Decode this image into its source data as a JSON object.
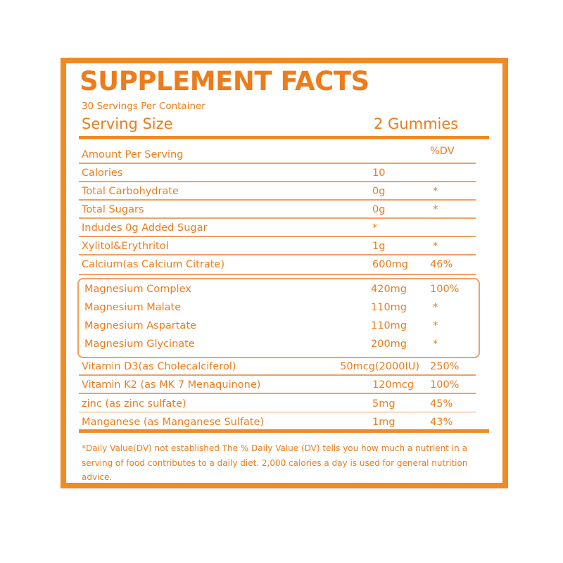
{
  "header": {
    "title": "SUPPLEMENT FACTS",
    "servings": "30 Servings Per Container",
    "serving_size_label": "Serving Size",
    "serving_size_value": "2 Gummies"
  },
  "table": {
    "rows": [
      {
        "name": "Amount Per Serving",
        "dv": "%DV"
      },
      {
        "name": "Calories",
        "amount": "10"
      },
      {
        "name": "Total Carbohydrate",
        "amount": "0g",
        "dv": "*"
      },
      {
        "name": "Total Sugars",
        "amount": "0g",
        "dv": "*"
      },
      {
        "name": "Indudes 0g Added Sugar",
        "amount": "*"
      },
      {
        "name": "Xylitol&Erythritol",
        "amount": "1g",
        "dv": "*"
      },
      {
        "name": "Calcium(as Calcium Citrate)",
        "amount": "600mg",
        "dv": "46%"
      }
    ],
    "magnesium_rows": [
      {
        "name": "Magnesium Complex",
        "amount": "420mg",
        "dv": "100%"
      },
      {
        "name": "Magnesium Malate",
        "amount": "110mg",
        "dv": "*"
      },
      {
        "name": "Magnesium Aspartate",
        "amount": "110mg",
        "dv": "*"
      },
      {
        "name": "Magnesium Glycinate",
        "amount": "200mg",
        "dv": "*"
      }
    ],
    "other_rows": [
      {
        "name": "Vitamin D3(as Cholecalciferol)",
        "amount": "50mcg(2000IU)",
        "dv": "250%"
      },
      {
        "name": "Vitamin K2 (as MK 7 Menaquinone)",
        "amount": "120mcg",
        "dv": "100%"
      },
      {
        "name": "zinc (as zinc sulfate)",
        "amount": "5mg",
        "dv": "45%"
      },
      {
        "name": "Manganese (as Manganese Sulfate)",
        "amount": "1mg",
        "dv": "43%"
      }
    ]
  },
  "footnote": "*Daily Value(DV) not established The % Daily Value (DV) tells you how much a nutrient in a serving of food contributes to a daily diet. 2,000 calories a day is used for general nutrition advice."
}
